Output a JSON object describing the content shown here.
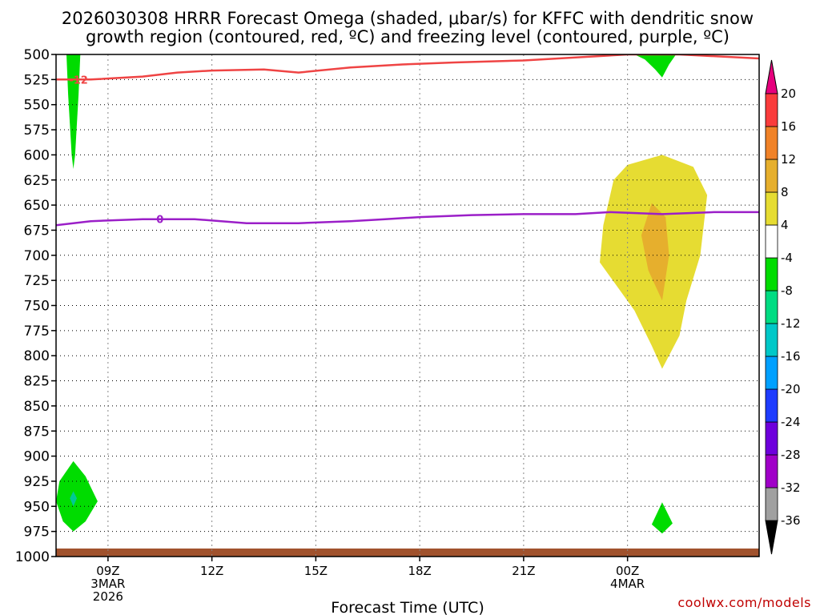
{
  "chart_data": {
    "type": "heatmap",
    "title_line1": "2026030308 HRRR Forecast Omega (shaded, μbar/s) for KFFC with dendritic snow",
    "title_line2": "growth region (contoured, red, ºC) and freezing level (contoured, purple, ºC)",
    "xlabel": "Forecast Time (UTC)",
    "credit": "coolwx.com/models",
    "xlim": [
      7.5,
      27.8
    ],
    "ylim": [
      500,
      1000
    ],
    "y_ticks": [
      500,
      525,
      550,
      575,
      600,
      625,
      650,
      675,
      700,
      725,
      750,
      775,
      800,
      825,
      850,
      875,
      900,
      925,
      950,
      975,
      1000
    ],
    "y_tick_labels": [
      "500",
      "525",
      "550",
      "575",
      "600",
      "625",
      "650",
      "675",
      "700",
      "725",
      "750",
      "775",
      "800",
      "825",
      "850",
      "875",
      "900",
      "925",
      "950",
      "975",
      "1000"
    ],
    "x_ticks": [
      {
        "hour": 9,
        "label": "09Z",
        "sub1": "3MAR",
        "sub2": "2026"
      },
      {
        "hour": 12,
        "label": "12Z"
      },
      {
        "hour": 15,
        "label": "15Z"
      },
      {
        "hour": 18,
        "label": "18Z"
      },
      {
        "hour": 21,
        "label": "21Z"
      },
      {
        "hour": 24,
        "label": "00Z",
        "sub1": "4MAR"
      }
    ],
    "colorbar": {
      "levels": [
        -36,
        -32,
        -28,
        -24,
        -20,
        -16,
        -12,
        -8,
        -4,
        4,
        8,
        12,
        16,
        20
      ],
      "labels": [
        "-36",
        "-32",
        "-28",
        "-24",
        "-20",
        "-16",
        "-12",
        "-8",
        "-4",
        "4",
        "8",
        "12",
        "16",
        "20"
      ],
      "colors": [
        "#a0a0a0",
        "#a000c8",
        "#6e00dc",
        "#1e3cff",
        "#00a0ff",
        "#00c8c8",
        "#00dc82",
        "#00dc00",
        "#ffffff",
        "#e6dc32",
        "#e6af2d",
        "#f08228",
        "#fa3c3c",
        "#f00082"
      ],
      "under_color": "#000000",
      "over_color": "#e6007d"
    },
    "omega_regions": [
      {
        "value": "-4 to -8",
        "color": "#00dc00",
        "points": [
          [
            7.8,
            500
          ],
          [
            8.2,
            500
          ],
          [
            8.15,
            540
          ],
          [
            8.05,
            600
          ],
          [
            8.0,
            614
          ],
          [
            7.95,
            600
          ],
          [
            7.85,
            540
          ]
        ]
      },
      {
        "value": "-4 to -8",
        "color": "#00dc00",
        "points": [
          [
            24.2,
            500
          ],
          [
            25.4,
            500
          ],
          [
            25.2,
            510
          ],
          [
            25.0,
            523
          ],
          [
            24.8,
            515
          ],
          [
            24.5,
            505
          ]
        ]
      },
      {
        "value": "-4 to -8",
        "color": "#00dc00",
        "points": [
          [
            8.0,
            905
          ],
          [
            8.35,
            920
          ],
          [
            8.7,
            945
          ],
          [
            8.35,
            965
          ],
          [
            8.0,
            975
          ],
          [
            7.7,
            965
          ],
          [
            7.5,
            945
          ],
          [
            7.6,
            925
          ]
        ]
      },
      {
        "value": "-8 to -12",
        "color": "#00c896",
        "points": [
          [
            8.0,
            935
          ],
          [
            8.1,
            942
          ],
          [
            8.0,
            950
          ],
          [
            7.9,
            942
          ]
        ]
      },
      {
        "value": "-4 to -8",
        "color": "#00dc00",
        "points": [
          [
            25.0,
            946
          ],
          [
            25.3,
            967
          ],
          [
            25.0,
            977
          ],
          [
            24.7,
            968
          ]
        ]
      },
      {
        "value": "4 to 8",
        "color": "#e6dc32",
        "points": [
          [
            24.0,
            610
          ],
          [
            25.0,
            600
          ],
          [
            25.9,
            612
          ],
          [
            26.3,
            640
          ],
          [
            26.1,
            700
          ],
          [
            25.7,
            745
          ],
          [
            25.5,
            780
          ],
          [
            25.0,
            813
          ],
          [
            24.7,
            790
          ],
          [
            24.2,
            755
          ],
          [
            23.2,
            707
          ],
          [
            23.3,
            670
          ],
          [
            23.6,
            625
          ]
        ]
      },
      {
        "value": "8 to 12",
        "color": "#e6af2d",
        "points": [
          [
            24.7,
            648
          ],
          [
            25.1,
            662
          ],
          [
            25.2,
            700
          ],
          [
            25.0,
            745
          ],
          [
            24.6,
            715
          ],
          [
            24.4,
            680
          ]
        ]
      }
    ],
    "dgz_line": {
      "value": "-12",
      "label": "-12",
      "color": "#ef4444",
      "x": [
        7.5,
        8.5,
        10.0,
        11.0,
        12.0,
        13.5,
        14.5,
        16.0,
        17.5,
        19.0,
        21.0,
        22.5,
        24.0,
        25.5,
        27.8
      ],
      "y": [
        525,
        525,
        522,
        518,
        516,
        515,
        518,
        513,
        510,
        508,
        506,
        503,
        500,
        500,
        504
      ]
    },
    "freezing_line": {
      "value": "0",
      "label": "0",
      "color": "#9b1fc8",
      "x": [
        7.5,
        8.5,
        10.0,
        11.5,
        13.0,
        14.5,
        16.0,
        17.0,
        18.0,
        19.5,
        21.0,
        22.5,
        23.5,
        25.0,
        26.5,
        27.8
      ],
      "y": [
        670,
        666,
        664,
        664,
        668,
        668,
        666,
        664,
        662,
        660,
        659,
        659,
        657,
        659,
        657,
        657
      ]
    }
  }
}
